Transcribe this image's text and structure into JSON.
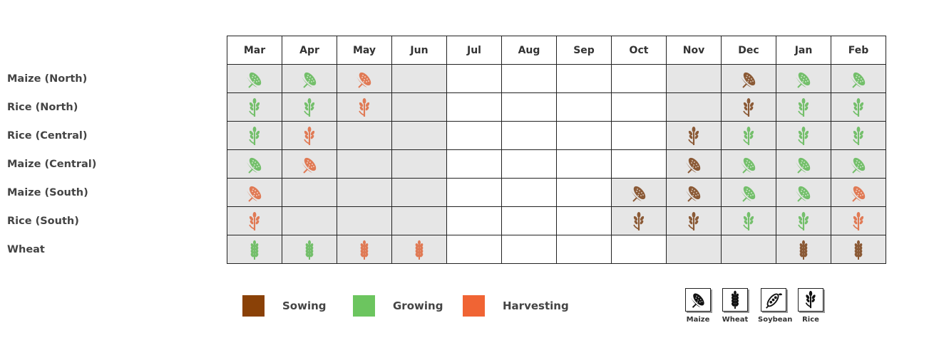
{
  "months": [
    "Mar",
    "Apr",
    "May",
    "Jun",
    "Jul",
    "Aug",
    "Sep",
    "Oct",
    "Nov",
    "Dec",
    "Jan",
    "Feb"
  ],
  "colors": {
    "sowing": "#8a4107",
    "growing": "#6cc55f",
    "harvesting": "#f06434",
    "sowing_icon": "#8b5a36",
    "growing_icon": "#74bf6b",
    "harvesting_icon": "#e07a55",
    "shaded_cell": "#e6e6e6",
    "blank_cell": "#ffffff"
  },
  "rows": [
    {
      "label": "Maize (North)",
      "crop": "maize",
      "cells": [
        "growing",
        "growing",
        "harvesting",
        "shaded",
        "blank",
        "blank",
        "blank",
        "blank",
        "shaded",
        "sowing",
        "growing",
        "growing"
      ]
    },
    {
      "label": "Rice (North)",
      "crop": "rice",
      "cells": [
        "growing",
        "growing",
        "harvesting",
        "shaded",
        "blank",
        "blank",
        "blank",
        "blank",
        "shaded",
        "sowing",
        "growing",
        "growing"
      ]
    },
    {
      "label": "Rice (Central)",
      "crop": "rice",
      "cells": [
        "growing",
        "harvesting",
        "shaded",
        "shaded",
        "blank",
        "blank",
        "blank",
        "blank",
        "sowing",
        "growing",
        "growing",
        "growing"
      ]
    },
    {
      "label": "Maize (Central)",
      "crop": "maize",
      "cells": [
        "growing",
        "harvesting",
        "shaded",
        "shaded",
        "blank",
        "blank",
        "blank",
        "blank",
        "sowing",
        "growing",
        "growing",
        "growing"
      ]
    },
    {
      "label": "Maize (South)",
      "crop": "maize",
      "cells": [
        "harvesting",
        "shaded",
        "shaded",
        "shaded",
        "blank",
        "blank",
        "blank",
        "sowing",
        "sowing",
        "growing",
        "growing",
        "harvesting"
      ]
    },
    {
      "label": "Rice (South)",
      "crop": "rice",
      "cells": [
        "harvesting",
        "shaded",
        "shaded",
        "shaded",
        "blank",
        "blank",
        "blank",
        "sowing",
        "sowing",
        "growing",
        "growing",
        "harvesting"
      ]
    },
    {
      "label": "Wheat",
      "crop": "wheat",
      "cells": [
        "growing",
        "growing",
        "harvesting",
        "harvesting",
        "blank",
        "blank",
        "blank",
        "blank",
        "shaded",
        "shaded",
        "sowing",
        "sowing"
      ]
    }
  ],
  "legend": [
    {
      "label": "Sowing",
      "color": "#8a4107"
    },
    {
      "label": "Growing",
      "color": "#6cc55f"
    },
    {
      "label": "Harvesting",
      "color": "#f06434"
    }
  ],
  "icon_key": [
    {
      "label": "Maize",
      "icon": "maize-icon"
    },
    {
      "label": "Wheat",
      "icon": "wheat-icon"
    },
    {
      "label": "Soybean",
      "icon": "soybean-icon"
    },
    {
      "label": "Rice",
      "icon": "rice-icon"
    }
  ]
}
